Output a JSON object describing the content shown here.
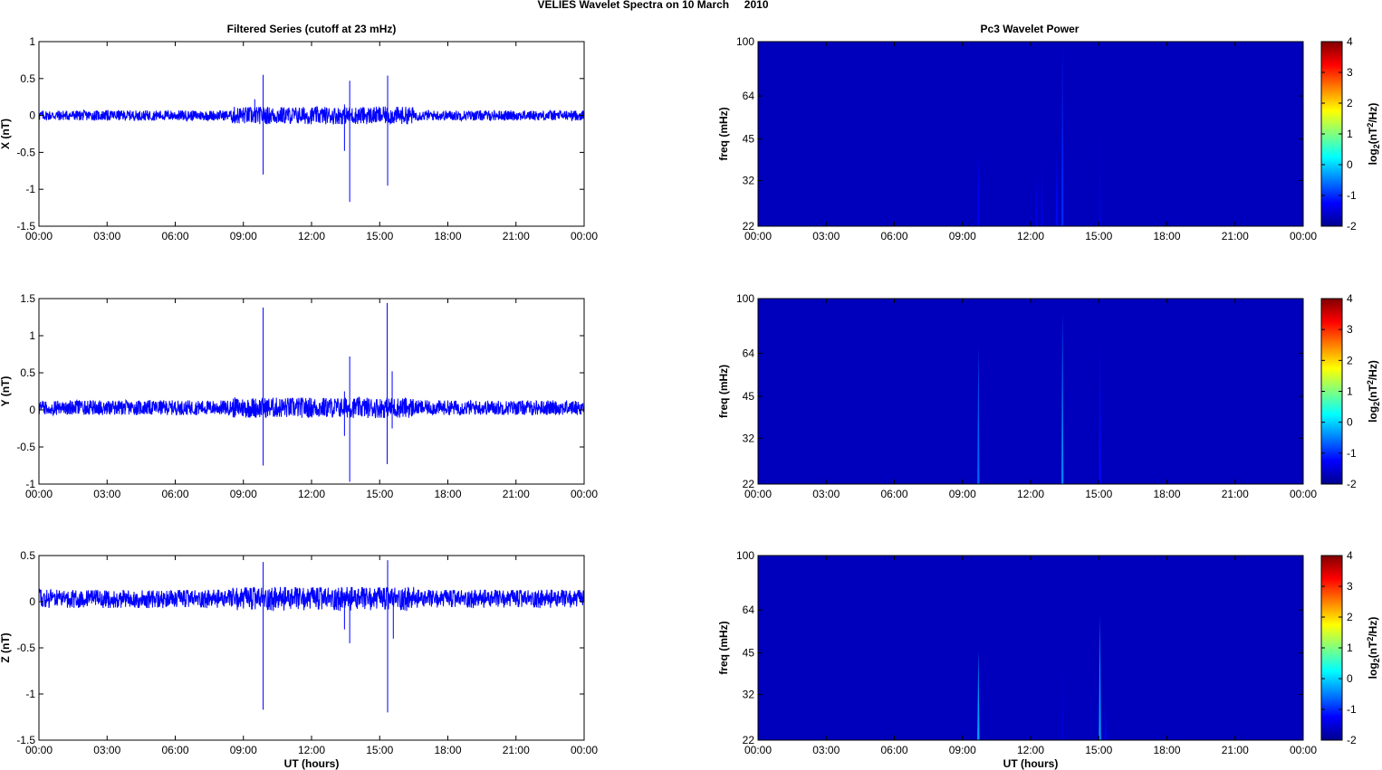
{
  "figure_title": "VELIES Wavelet Spectra on 10 March     2010",
  "left_title": "Filtered Series (cutoff at 23 mHz)",
  "right_title": "Pc3 Wavelet Power",
  "x_label": "UT (hours)",
  "x_ticks": [
    "00:00",
    "03:00",
    "06:00",
    "09:00",
    "12:00",
    "15:00",
    "18:00",
    "21:00",
    "00:00"
  ],
  "colors": {
    "trace": "#0000ff",
    "background": "#00008f"
  },
  "chart_data": [
    {
      "type": "line",
      "title": "Filtered Series (cutoff at 23 mHz)",
      "ylabel": "X (nT)",
      "xlabel": "",
      "xlim": [
        0,
        24
      ],
      "ylim": [
        -1.5,
        1
      ],
      "yticks": [
        "1",
        "0.5",
        "0",
        "-0.5",
        "-1",
        "-1.5"
      ],
      "yticks_values": [
        1,
        0.5,
        0,
        -0.5,
        -1,
        -1.5
      ],
      "baseline": 0,
      "noise_envelope": [
        {
          "x": [
            0,
            8.5
          ],
          "amplitude": 0.07
        },
        {
          "x": [
            8.5,
            16.5
          ],
          "amplitude": 0.12
        },
        {
          "x": [
            16.5,
            24
          ],
          "amplitude": 0.07
        }
      ],
      "spikes": [
        {
          "x": 9.87,
          "max": 0.55,
          "min": -0.8
        },
        {
          "x": 13.45,
          "max": 0.15,
          "min": -0.48
        },
        {
          "x": 13.68,
          "max": 0.47,
          "min": -1.17
        },
        {
          "x": 15.35,
          "max": 0.54,
          "min": -0.95
        },
        {
          "x": 9.5,
          "max": 0.22,
          "min": -0.1
        }
      ]
    },
    {
      "type": "line",
      "ylabel": "Y (nT)",
      "xlabel": "",
      "xlim": [
        0,
        24
      ],
      "ylim": [
        -1,
        1.5
      ],
      "yticks": [
        "1.5",
        "1",
        "0.5",
        "0",
        "-0.5",
        "-1"
      ],
      "yticks_values": [
        1.5,
        1,
        0.5,
        0,
        -0.5,
        -1
      ],
      "baseline": 0.03,
      "noise_envelope": [
        {
          "x": [
            0,
            8.5
          ],
          "amplitude": 0.1
        },
        {
          "x": [
            8.5,
            16.5
          ],
          "amplitude": 0.14
        },
        {
          "x": [
            16.5,
            24
          ],
          "amplitude": 0.1
        }
      ],
      "spikes": [
        {
          "x": 9.87,
          "max": 1.38,
          "min": -0.75
        },
        {
          "x": 13.45,
          "max": 0.25,
          "min": -0.35
        },
        {
          "x": 13.68,
          "max": 0.72,
          "min": -0.97
        },
        {
          "x": 15.33,
          "max": 1.44,
          "min": -0.73
        },
        {
          "x": 15.55,
          "max": 0.52,
          "min": -0.25
        }
      ]
    },
    {
      "type": "line",
      "ylabel": "Z (nT)",
      "xlabel": "UT (hours)",
      "xlim": [
        0,
        24
      ],
      "ylim": [
        -1.5,
        0.5
      ],
      "yticks": [
        "0.5",
        "0",
        "-0.5",
        "-1",
        "-1.5"
      ],
      "yticks_values": [
        0.5,
        0,
        -0.5,
        -1,
        -1.5
      ],
      "baseline": 0.03,
      "noise_envelope": [
        {
          "x": [
            0,
            8.5
          ],
          "amplitude": 0.1
        },
        {
          "x": [
            8.5,
            16.5
          ],
          "amplitude": 0.13
        },
        {
          "x": [
            16.5,
            24
          ],
          "amplitude": 0.1
        }
      ],
      "spikes": [
        {
          "x": 9.87,
          "max": 0.43,
          "min": -1.17
        },
        {
          "x": 13.45,
          "max": 0.1,
          "min": -0.3
        },
        {
          "x": 13.68,
          "max": 0.12,
          "min": -0.45
        },
        {
          "x": 15.35,
          "max": 0.45,
          "min": -1.2
        },
        {
          "x": 15.6,
          "max": 0.1,
          "min": -0.4
        }
      ]
    },
    {
      "type": "heatmap",
      "title": "Pc3 Wavelet Power",
      "ylabel": "freq (mHz)",
      "xlabel": "",
      "xlim": [
        0,
        24
      ],
      "ylim": [
        22,
        100
      ],
      "yscale": "log",
      "yticks": [
        "100",
        "64",
        "45",
        "32",
        "22"
      ],
      "yticks_values": [
        100,
        64,
        45,
        32,
        22
      ],
      "colorbar": {
        "label": "log2(nT2/Hz)",
        "range": [
          -2,
          4
        ],
        "ticks": [
          "4",
          "3",
          "2",
          "1",
          "0",
          "-1",
          "-2"
        ]
      },
      "background_value": -1.7,
      "streaks": [
        {
          "x": 9.7,
          "top_freq": 40,
          "value": -1.3
        },
        {
          "x": 12.25,
          "top_freq": 34,
          "value": -1.4
        },
        {
          "x": 12.5,
          "top_freq": 38,
          "value": -1.4
        },
        {
          "x": 13.15,
          "top_freq": 40,
          "value": -1.2
        },
        {
          "x": 13.4,
          "top_freq": 98,
          "value": -1.0
        },
        {
          "x": 15.05,
          "top_freq": 48,
          "value": -1.5
        }
      ]
    },
    {
      "type": "heatmap",
      "ylabel": "freq (mHz)",
      "xlabel": "",
      "xlim": [
        0,
        24
      ],
      "ylim": [
        22,
        100
      ],
      "yscale": "log",
      "yticks": [
        "100",
        "64",
        "45",
        "32",
        "22"
      ],
      "yticks_values": [
        100,
        64,
        45,
        32,
        22
      ],
      "colorbar": {
        "label": "log2(nT2/Hz)",
        "range": [
          -2,
          4
        ],
        "ticks": [
          "4",
          "3",
          "2",
          "1",
          "0",
          "-1",
          "-2"
        ]
      },
      "background_value": -1.7,
      "streaks": [
        {
          "x": 9.7,
          "top_freq": 68,
          "value": -0.6
        },
        {
          "x": 13.4,
          "top_freq": 90,
          "value": -0.4
        },
        {
          "x": 15.05,
          "top_freq": 70,
          "value": -1.2
        }
      ]
    },
    {
      "type": "heatmap",
      "ylabel": "freq (mHz)",
      "xlabel": "UT (hours)",
      "xlim": [
        0,
        24
      ],
      "ylim": [
        22,
        100
      ],
      "yscale": "log",
      "yticks": [
        "100",
        "64",
        "45",
        "32",
        "22"
      ],
      "yticks_values": [
        100,
        64,
        45,
        32,
        22
      ],
      "colorbar": {
        "label": "log2(nT2/Hz)",
        "range": [
          -2,
          4
        ],
        "ticks": [
          "4",
          "3",
          "2",
          "1",
          "0",
          "-1",
          "-2"
        ]
      },
      "background_value": -1.7,
      "streaks": [
        {
          "x": 9.7,
          "top_freq": 46,
          "value": -0.2
        },
        {
          "x": 13.4,
          "top_freq": 40,
          "value": -1.5
        },
        {
          "x": 15.05,
          "top_freq": 62,
          "value": -0.2
        },
        {
          "x": 15.3,
          "top_freq": 30,
          "value": -1.3
        }
      ]
    }
  ]
}
